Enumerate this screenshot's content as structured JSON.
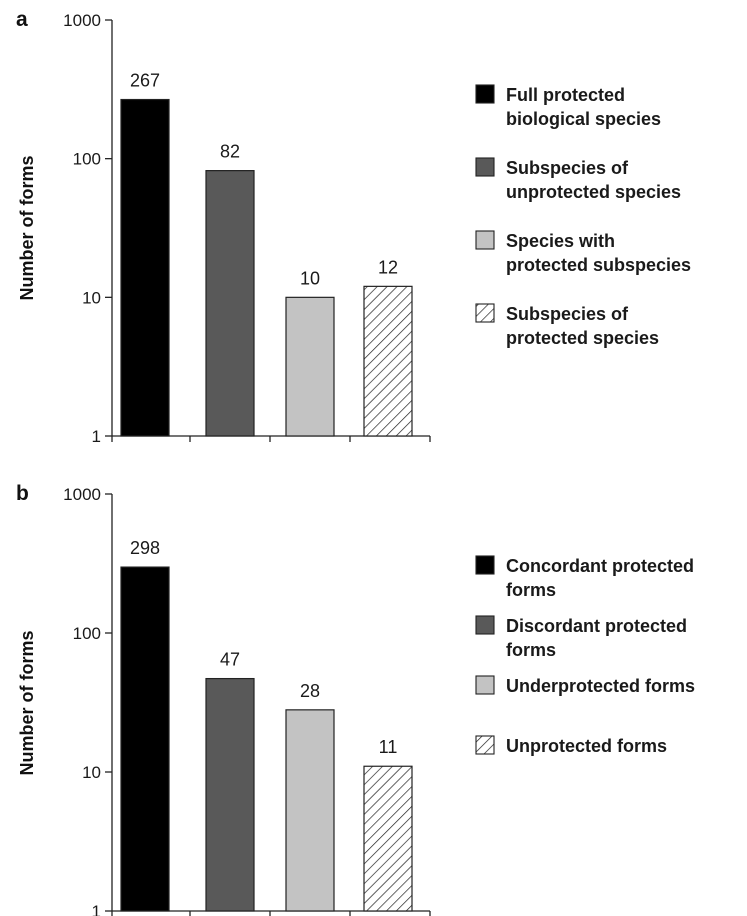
{
  "chart_data": [
    {
      "type": "bar",
      "panel": "a",
      "scale": "log",
      "ylabel": "Number of forms",
      "ylim": [
        1,
        1000
      ],
      "yticks": [
        "1",
        "10",
        "100",
        "1000"
      ],
      "categories": [
        "Full protected biological species",
        "Subspecies of unprotected species",
        "Species with protected subspecies",
        "Subspecies of protected species"
      ],
      "values": [
        267,
        82,
        10,
        12
      ],
      "data_labels": [
        "267",
        "82",
        "10",
        "12"
      ],
      "legend": [
        {
          "lines": [
            "Full protected",
            "biological species"
          ],
          "fill": "#000000",
          "pattern": "solid"
        },
        {
          "lines": [
            "Subspecies of",
            "unprotected species"
          ],
          "fill": "#595959",
          "pattern": "solid"
        },
        {
          "lines": [
            "Species with",
            "protected subspecies"
          ],
          "fill": "#c3c3c3",
          "pattern": "solid"
        },
        {
          "lines": [
            "Subspecies of",
            "protected species"
          ],
          "fill": "#ffffff",
          "pattern": "hatch"
        }
      ]
    },
    {
      "type": "bar",
      "panel": "b",
      "scale": "log",
      "ylabel": "Number of forms",
      "ylim": [
        1,
        1000
      ],
      "yticks": [
        "1",
        "10",
        "100",
        "1000"
      ],
      "categories": [
        "Concordant protected forms",
        "Discordant protected forms",
        "Underprotected forms",
        "Unprotected forms"
      ],
      "values": [
        298,
        47,
        28,
        11
      ],
      "data_labels": [
        "298",
        "47",
        "28",
        "11"
      ],
      "legend": [
        {
          "lines": [
            "Concordant protected",
            "forms"
          ],
          "fill": "#000000",
          "pattern": "solid"
        },
        {
          "lines": [
            "Discordant protected",
            "forms"
          ],
          "fill": "#595959",
          "pattern": "solid"
        },
        {
          "lines": [
            "Underprotected forms"
          ],
          "fill": "#c3c3c3",
          "pattern": "solid"
        },
        {
          "lines": [
            "Unprotected forms"
          ],
          "fill": "#ffffff",
          "pattern": "hatch"
        }
      ]
    }
  ]
}
